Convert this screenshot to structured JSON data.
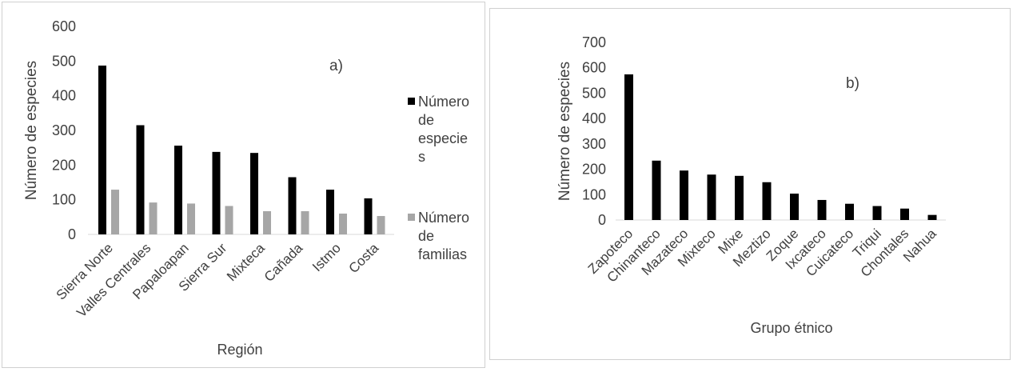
{
  "chart_data": [
    {
      "type": "bar",
      "panel_label": "a)",
      "xlabel": "Región",
      "ylabel": "Número de especies",
      "ylim": [
        0,
        600
      ],
      "yticks": [
        0,
        100,
        200,
        300,
        400,
        500,
        600
      ],
      "categories": [
        "Sierra Norte",
        "Valles Centrales",
        "Papaloapan",
        "Sierra Sur",
        "Mixteca",
        "Cañada",
        "Istmo",
        "Costa"
      ],
      "legend_position": "right",
      "series": [
        {
          "name": "Número de especies",
          "legend_lines": [
            "Número",
            "de",
            "especie",
            "s"
          ],
          "color": "#000000",
          "values": [
            487,
            315,
            256,
            238,
            235,
            165,
            129,
            104
          ]
        },
        {
          "name": "Número de familias",
          "legend_lines": [
            "Número",
            "de",
            "familias"
          ],
          "color": "#a6a6a6",
          "values": [
            129,
            92,
            89,
            82,
            67,
            67,
            60,
            53
          ]
        }
      ]
    },
    {
      "type": "bar",
      "panel_label": "b)",
      "xlabel": "Grupo étnico",
      "ylabel": "Número de especies",
      "ylim": [
        0,
        700
      ],
      "yticks": [
        0,
        100,
        200,
        300,
        400,
        500,
        600,
        700
      ],
      "categories": [
        "Zapoteco",
        "Chinanteco",
        "Mazateco",
        "Mixteco",
        "Mixe",
        "Meztizo",
        "Zoque",
        "Ixcateco",
        "Cuicateco",
        "Triqui",
        "Chontales",
        "Nahua"
      ],
      "series": [
        {
          "name": "Número de especies",
          "color": "#000000",
          "values": [
            574,
            234,
            195,
            179,
            174,
            149,
            104,
            79,
            64,
            55,
            45,
            20
          ]
        }
      ]
    }
  ]
}
